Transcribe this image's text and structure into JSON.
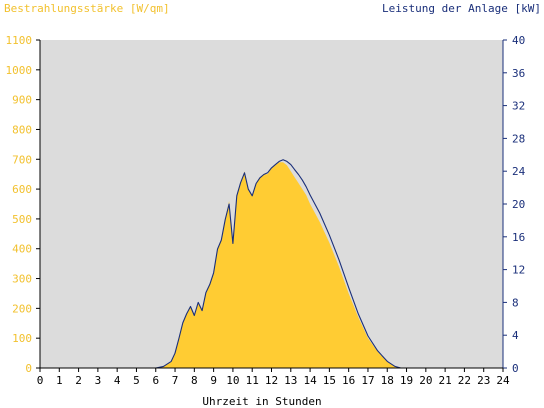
{
  "chart_data": {
    "type": "area",
    "title_left": "Bestrahlungsstärke [W/qm]",
    "title_right": "Leistung der Anlage [kW]",
    "xlabel": "Uhrzeit in Stunden",
    "xlim": [
      0,
      24
    ],
    "x_ticks": [
      "0",
      "1",
      "2",
      "3",
      "4",
      "5",
      "6",
      "7",
      "8",
      "9",
      "10",
      "11",
      "12",
      "13",
      "14",
      "15",
      "16",
      "17",
      "18",
      "19",
      "20",
      "21",
      "22",
      "23",
      "24"
    ],
    "y_left": {
      "label": "Bestrahlungsstärke [W/qm]",
      "lim": [
        0,
        1100
      ],
      "ticks": [
        "0",
        "100",
        "200",
        "300",
        "400",
        "500",
        "600",
        "700",
        "800",
        "900",
        "1000",
        "1100"
      ]
    },
    "y_right": {
      "label": "Leistung der Anlage [kW]",
      "lim": [
        0,
        40
      ],
      "ticks": [
        "0",
        "4",
        "8",
        "12",
        "16",
        "20",
        "24",
        "28",
        "32",
        "36",
        "40"
      ]
    },
    "grid": false,
    "colors": {
      "plot_background": "#dcdcdc",
      "irradiance_fill": "#ffcc33",
      "power_line": "#1a2f7a",
      "left_axis_text": "#f2c12e",
      "right_axis_text": "#1a2f7a"
    },
    "series": [
      {
        "name": "Bestrahlungsstärke [W/qm]",
        "axis": "left",
        "style": "area",
        "x": [
          0,
          6.0,
          6.4,
          6.8,
          7.0,
          7.2,
          7.4,
          7.6,
          7.8,
          8.0,
          8.2,
          8.4,
          8.6,
          8.8,
          9.0,
          9.2,
          9.4,
          9.6,
          9.8,
          10.0,
          10.2,
          10.4,
          10.6,
          10.8,
          11.0,
          11.2,
          11.4,
          11.6,
          11.8,
          12.0,
          12.2,
          12.4,
          12.6,
          12.8,
          13.0,
          13.2,
          13.4,
          13.6,
          13.8,
          14.0,
          14.5,
          15.0,
          15.5,
          16.0,
          16.5,
          17.0,
          17.5,
          18.0,
          18.4,
          18.7,
          19.0,
          24
        ],
        "y": [
          0,
          0,
          5,
          20,
          50,
          100,
          150,
          180,
          205,
          175,
          220,
          190,
          250,
          280,
          320,
          400,
          430,
          500,
          560,
          420,
          580,
          620,
          660,
          600,
          580,
          620,
          640,
          650,
          650,
          670,
          680,
          690,
          690,
          680,
          660,
          640,
          620,
          600,
          580,
          550,
          490,
          420,
          340,
          250,
          170,
          100,
          55,
          20,
          5,
          0,
          0,
          0
        ]
      },
      {
        "name": "Leistung der Anlage [kW]",
        "axis": "right",
        "style": "line",
        "x": [
          0,
          6.0,
          6.4,
          6.8,
          7.0,
          7.2,
          7.4,
          7.6,
          7.8,
          8.0,
          8.2,
          8.4,
          8.6,
          8.8,
          9.0,
          9.2,
          9.4,
          9.6,
          9.8,
          10.0,
          10.2,
          10.4,
          10.6,
          10.8,
          11.0,
          11.2,
          11.4,
          11.6,
          11.8,
          12.0,
          12.2,
          12.4,
          12.6,
          12.8,
          13.0,
          13.2,
          13.4,
          13.6,
          13.8,
          14.0,
          14.5,
          15.0,
          15.5,
          16.0,
          16.5,
          17.0,
          17.5,
          18.0,
          18.4,
          18.7,
          19.0,
          24
        ],
        "y": [
          0,
          0,
          0.2,
          0.8,
          1.8,
          3.6,
          5.5,
          6.6,
          7.5,
          6.4,
          8.0,
          7.0,
          9.2,
          10.2,
          11.6,
          14.5,
          15.6,
          18.1,
          20.0,
          15.2,
          21.0,
          22.6,
          23.8,
          21.8,
          21.0,
          22.5,
          23.2,
          23.6,
          23.8,
          24.4,
          24.8,
          25.2,
          25.4,
          25.2,
          24.8,
          24.2,
          23.6,
          22.9,
          22.1,
          21.1,
          18.9,
          16.2,
          13.2,
          9.8,
          6.6,
          3.9,
          2.1,
          0.8,
          0.2,
          0,
          0,
          0
        ]
      }
    ]
  }
}
